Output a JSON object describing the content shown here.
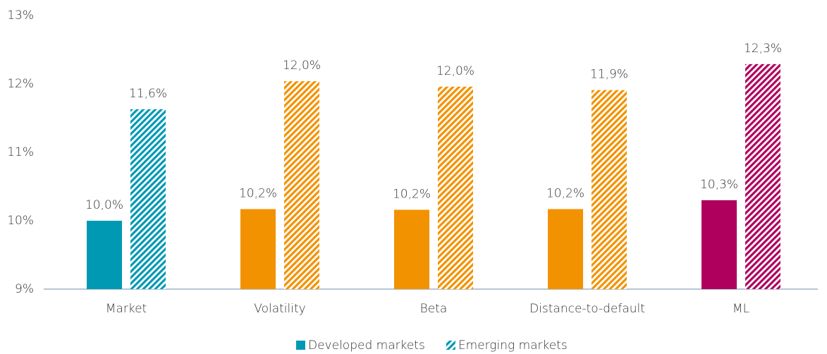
{
  "chart_data": {
    "type": "bar",
    "categories": [
      "Market",
      "Volatility",
      "Beta",
      "Distance-to-default",
      "ML"
    ],
    "series": [
      {
        "name": "Developed markets",
        "color": "#0099b4",
        "colors": [
          "#0099b4",
          "#f39200",
          "#f39200",
          "#f39200",
          "#b0005e"
        ],
        "hatched": false,
        "values": [
          10.0,
          10.17,
          10.16,
          10.17,
          10.3
        ],
        "value_labels": [
          "10,0%",
          "10,2%",
          "10,2%",
          "10,2%",
          "10,3%"
        ]
      },
      {
        "name": "Emerging markets",
        "color": "#0099b4",
        "colors": [
          "#0099b4",
          "#f39200",
          "#f39200",
          "#f39200",
          "#b0005e"
        ],
        "hatched": true,
        "values": [
          11.63,
          12.04,
          11.96,
          11.91,
          12.29
        ],
        "value_labels": [
          "11,6%",
          "12,0%",
          "12,0%",
          "11,9%",
          "12,3%"
        ]
      }
    ],
    "ylim": [
      9,
      13
    ],
    "yticks": [
      {
        "value": 9,
        "label": "9%"
      },
      {
        "value": 10,
        "label": "10%"
      },
      {
        "value": 11,
        "label": "11%"
      },
      {
        "value": 12,
        "label": "12%"
      },
      {
        "value": 13,
        "label": "13%"
      }
    ],
    "grid": false,
    "legend": "bottom"
  }
}
